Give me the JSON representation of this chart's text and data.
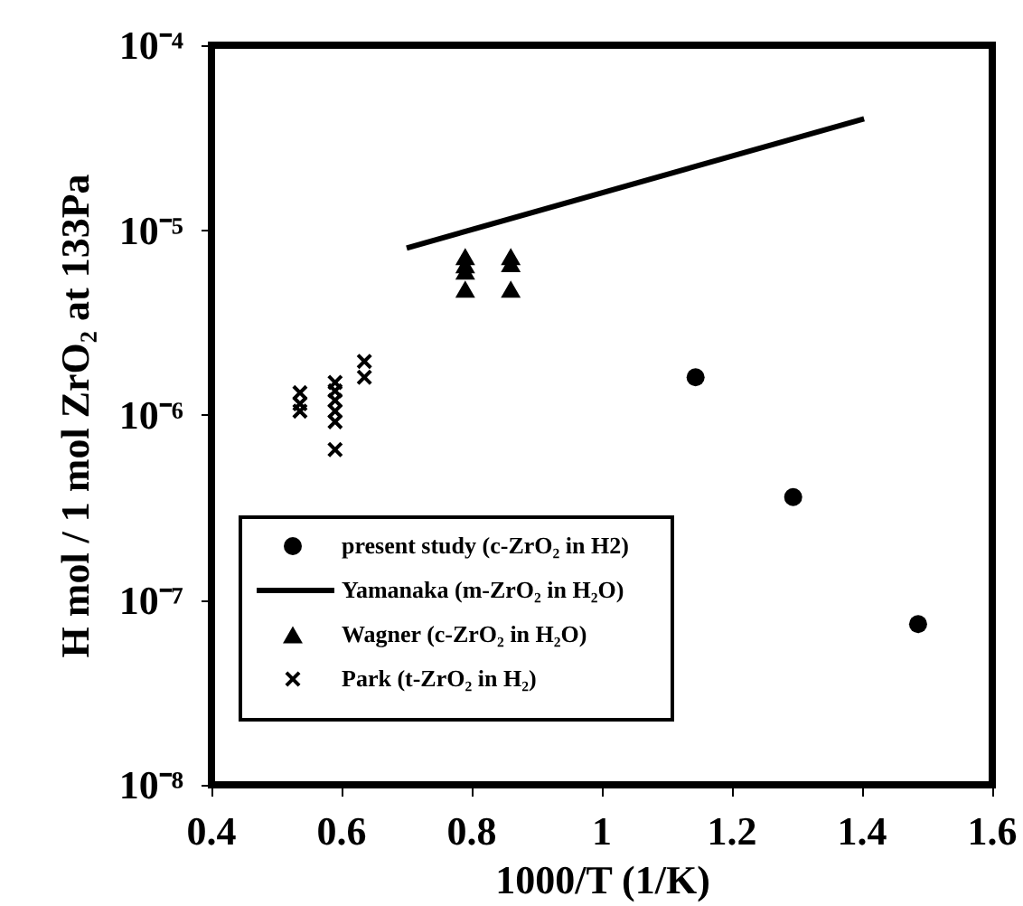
{
  "chart_data": {
    "type": "scatter",
    "xlabel": "1000/T (1/K)",
    "ylabel": "H mol / 1 mol ZrO₂ at 133Pa",
    "log": "y",
    "grid": false,
    "legend": "bottom left",
    "xlim": [
      0.4,
      1.6
    ],
    "xticks": [
      0.4,
      0.6,
      0.8,
      1,
      1.2,
      1.4,
      1.6
    ],
    "ylim": [
      1e-08,
      0.0001
    ],
    "yticks": [
      {
        "value": 1e-08,
        "label": "10⁻⁸"
      },
      {
        "value": 1e-07,
        "label": "10⁻⁷"
      },
      {
        "value": 1e-06,
        "label": "10⁻⁶"
      },
      {
        "value": 1e-05,
        "label": "10⁻⁵"
      },
      {
        "value": 0.0001,
        "label": "10⁻⁴"
      }
    ],
    "series": [
      {
        "name": "present study (c-ZrO₂ in H2)",
        "marker": "circle",
        "color": "#000000",
        "x": [
          1.144,
          1.294,
          1.486
        ],
        "values": [
          1.6e-06,
          3.6e-07,
          7.4e-08
        ]
      },
      {
        "name": "Yamanaka (m-ZrO₂ in H₂O)",
        "type": "line",
        "marker": "none",
        "color": "#000000",
        "x": [
          0.7,
          1.403
        ],
        "values": [
          8e-06,
          4e-05
        ]
      },
      {
        "name": "Wagner (c-ZrO₂ in H₂O)",
        "marker": "triangle",
        "color": "#000000",
        "x": [
          0.79,
          0.79,
          0.79,
          0.79,
          0.86,
          0.86,
          0.86
        ],
        "values": [
          7.2e-06,
          6.5e-06,
          6e-06,
          4.8e-06,
          7.2e-06,
          6.6e-06,
          4.8e-06
        ]
      },
      {
        "name": "Park (t-ZrO₂ in H₂)",
        "marker": "cross",
        "color": "#000000",
        "x": [
          0.536,
          0.536,
          0.536,
          0.59,
          0.59,
          0.59,
          0.59,
          0.59,
          0.59,
          0.635,
          0.635
        ],
        "values": [
          1.32e-06,
          1.15e-06,
          1.05e-06,
          1.5e-06,
          1.35e-06,
          1.2e-06,
          1.05e-06,
          9.2e-07,
          6.5e-07,
          1.95e-06,
          1.6e-06
        ]
      }
    ]
  }
}
